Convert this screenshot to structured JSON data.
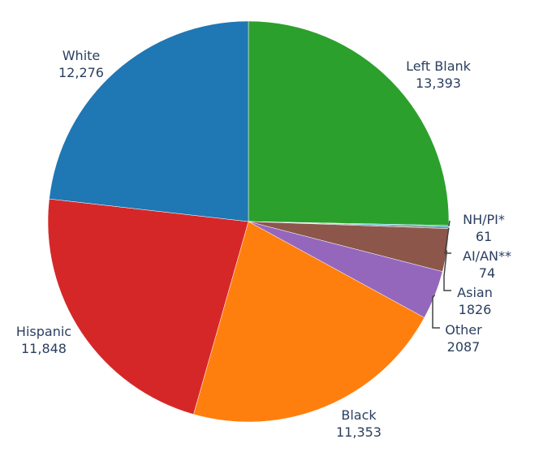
{
  "chart_data": {
    "type": "pie",
    "title": "",
    "direction": "clockwise",
    "start": "top",
    "slices": [
      {
        "label": "Left Blank",
        "value_text": "13,393",
        "value": 13393,
        "color": "#2ca02c"
      },
      {
        "label": "NH/PI*",
        "value_text": "61",
        "value": 61,
        "color": "#17becf"
      },
      {
        "label": "AI/AN**",
        "value_text": "74",
        "value": 74,
        "color": "#7f7f7f"
      },
      {
        "label": "Asian",
        "value_text": "1826",
        "value": 1826,
        "color": "#8c564b"
      },
      {
        "label": "Other",
        "value_text": "2087",
        "value": 2087,
        "color": "#9467bd"
      },
      {
        "label": "Black",
        "value_text": "11,353",
        "value": 11353,
        "color": "#ff7f0e"
      },
      {
        "label": "Hispanic",
        "value_text": "11,848",
        "value": 11848,
        "color": "#d62728"
      },
      {
        "label": "White",
        "value_text": "12,276",
        "value": 12276,
        "color": "#1f77b4"
      }
    ]
  }
}
